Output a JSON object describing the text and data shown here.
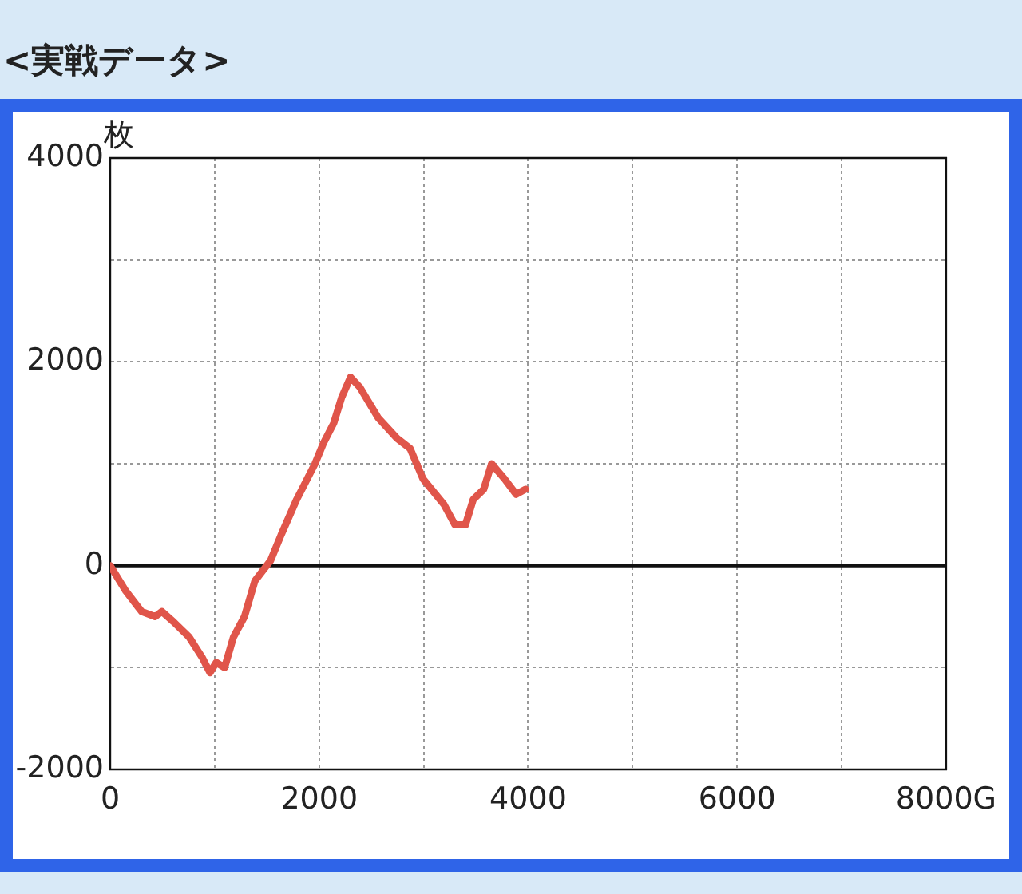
{
  "chart_data": {
    "type": "line",
    "title": "<実戦データ>",
    "ylabel": "枚",
    "x": [
      0,
      150,
      300,
      430,
      495,
      605,
      755,
      880,
      955,
      1015,
      1095,
      1180,
      1285,
      1385,
      1535,
      1635,
      1785,
      1960,
      2040,
      2140,
      2215,
      2300,
      2390,
      2565,
      2745,
      2870,
      2995,
      3195,
      3300,
      3400,
      3475,
      3575,
      3650,
      3775,
      3885,
      3975
    ],
    "series": [
      {
        "color": "#e0554a",
        "values": [
          0,
          -250,
          -450,
          -500,
          -450,
          -550,
          -700,
          -900,
          -1050,
          -950,
          -1000,
          -700,
          -500,
          -150,
          50,
          300,
          650,
          1000,
          1200,
          1400,
          1650,
          1850,
          1750,
          1450,
          1250,
          1150,
          850,
          600,
          400,
          400,
          650,
          750,
          1000,
          850,
          700,
          750
        ]
      }
    ],
    "xlim": [
      0,
      8000
    ],
    "xticks": [
      0,
      {
        "value": 1000,
        "label": null
      },
      2000,
      {
        "value": 3000,
        "label": null
      },
      4000,
      {
        "value": 5000,
        "label": null
      },
      6000,
      {
        "value": 7000,
        "label": null
      },
      {
        "value": 8000,
        "label": "8000G"
      }
    ],
    "ylim": [
      -2000,
      4000
    ],
    "yticks": [
      -2000,
      {
        "value": -1000,
        "label": null
      },
      0,
      {
        "value": 1000,
        "label": null
      },
      2000,
      {
        "value": 3000,
        "label": null
      },
      4000
    ],
    "ref_lines": [
      {
        "axis": "y",
        "value": 0,
        "color": "#111111"
      }
    ],
    "grid": true,
    "legend": false,
    "marker": "none",
    "line_style": "solid"
  }
}
